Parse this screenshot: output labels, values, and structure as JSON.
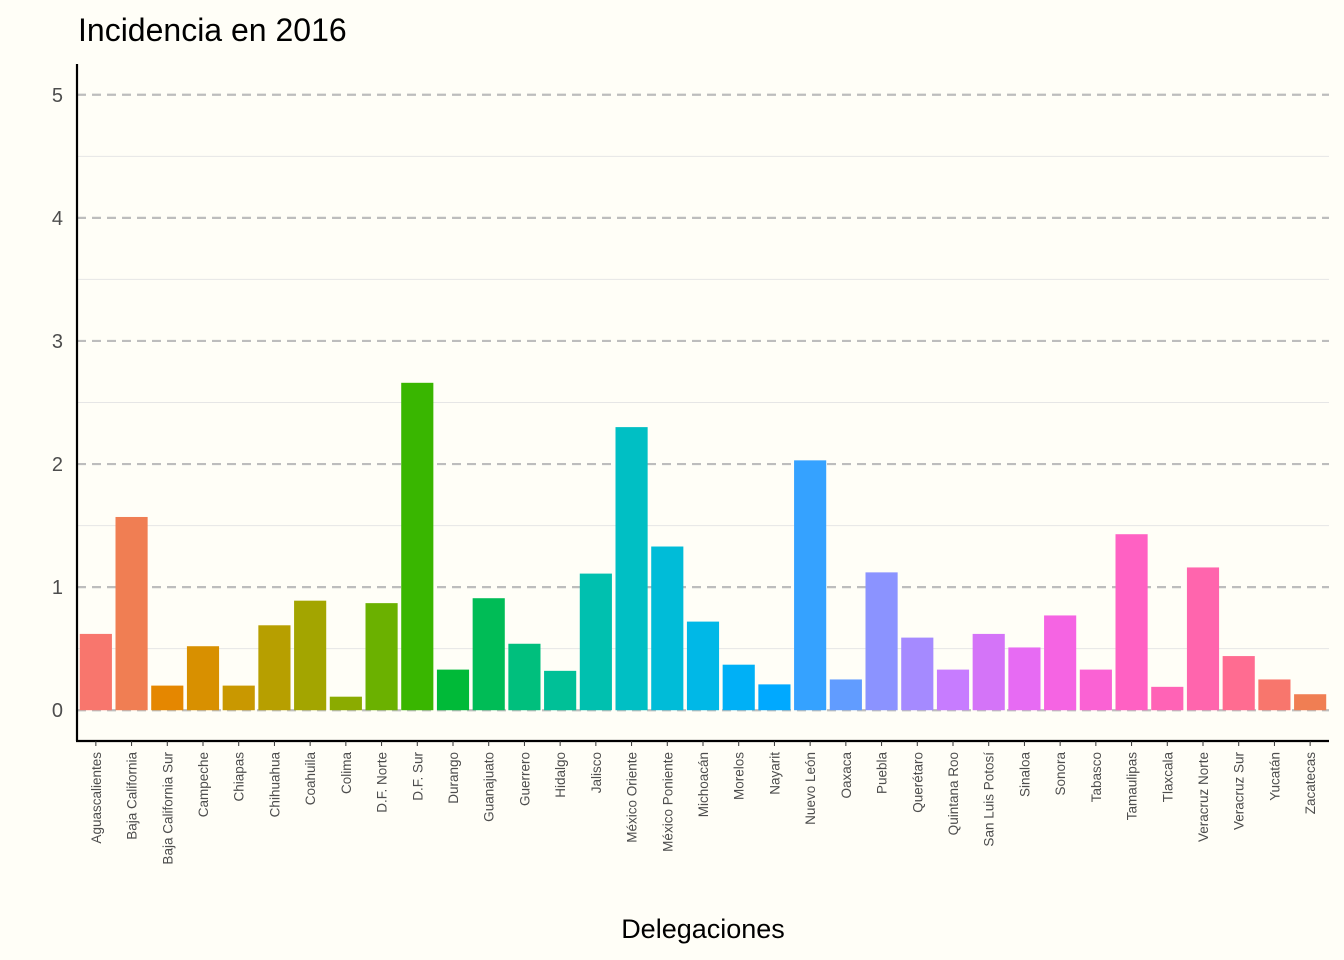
{
  "chart_data": {
    "type": "bar",
    "title": "Incidencia en 2016",
    "xlabel": "Delegaciones",
    "ylabel": "",
    "ylim": [
      -0.25,
      5.25
    ],
    "yticks": [
      0,
      1,
      2,
      3,
      4,
      5
    ],
    "grid": "horizontal dashed (major), solid light (minor)",
    "legend": "none",
    "categories": [
      "Aguascalientes",
      "Baja California",
      "Baja California Sur",
      "Campeche",
      "Chiapas",
      "Chihuahua",
      "Coahuila",
      "Colima",
      "D.F. Norte",
      "D.F. Sur",
      "Durango",
      "Guanajuato",
      "Guerrero",
      "Hidalgo",
      "Jalisco",
      "México Oriente",
      "México Poniente",
      "Michoacán",
      "Morelos",
      "Nayarit",
      "Nuevo León",
      "Oaxaca",
      "Puebla",
      "Querétaro",
      "Quintana Roo",
      "San Luis Potosí",
      "Sinaloa",
      "Sonora",
      "Tabasco",
      "Tamaulipas",
      "Tlaxcala",
      "Veracruz Norte",
      "Veracruz Sur",
      "Yucatán",
      "Zacatecas"
    ],
    "values": [
      0.62,
      1.57,
      0.2,
      0.52,
      0.2,
      0.69,
      0.89,
      0.11,
      0.87,
      2.66,
      0.33,
      0.91,
      0.54,
      0.32,
      1.11,
      2.3,
      1.33,
      0.72,
      0.37,
      0.21,
      2.03,
      0.25,
      1.12,
      0.59,
      0.33,
      0.62,
      0.51,
      0.77,
      0.33,
      1.43,
      0.19,
      1.16,
      0.44,
      0.25,
      0.13
    ],
    "colors": [
      "#F8766D",
      "#F07E53",
      "#E58700",
      "#D89000",
      "#C99800",
      "#B79F00",
      "#A3A500",
      "#8BAB00",
      "#6BB100",
      "#39B600",
      "#00BA38",
      "#00BC56",
      "#00BF7D",
      "#00C097",
      "#00C0AF",
      "#00BFC4",
      "#00BCD8",
      "#00B8E7",
      "#00B0F6",
      "#00A9FF",
      "#35A2FF",
      "#619CFF",
      "#8B93FF",
      "#A58AFF",
      "#C77CFF",
      "#D474F8",
      "#E76BF3",
      "#F564E3",
      "#FA62D4",
      "#FF61C3",
      "#FF63B6",
      "#FF65AD",
      "#FF6C91",
      "#F8766D",
      "#F07E53"
    ]
  }
}
